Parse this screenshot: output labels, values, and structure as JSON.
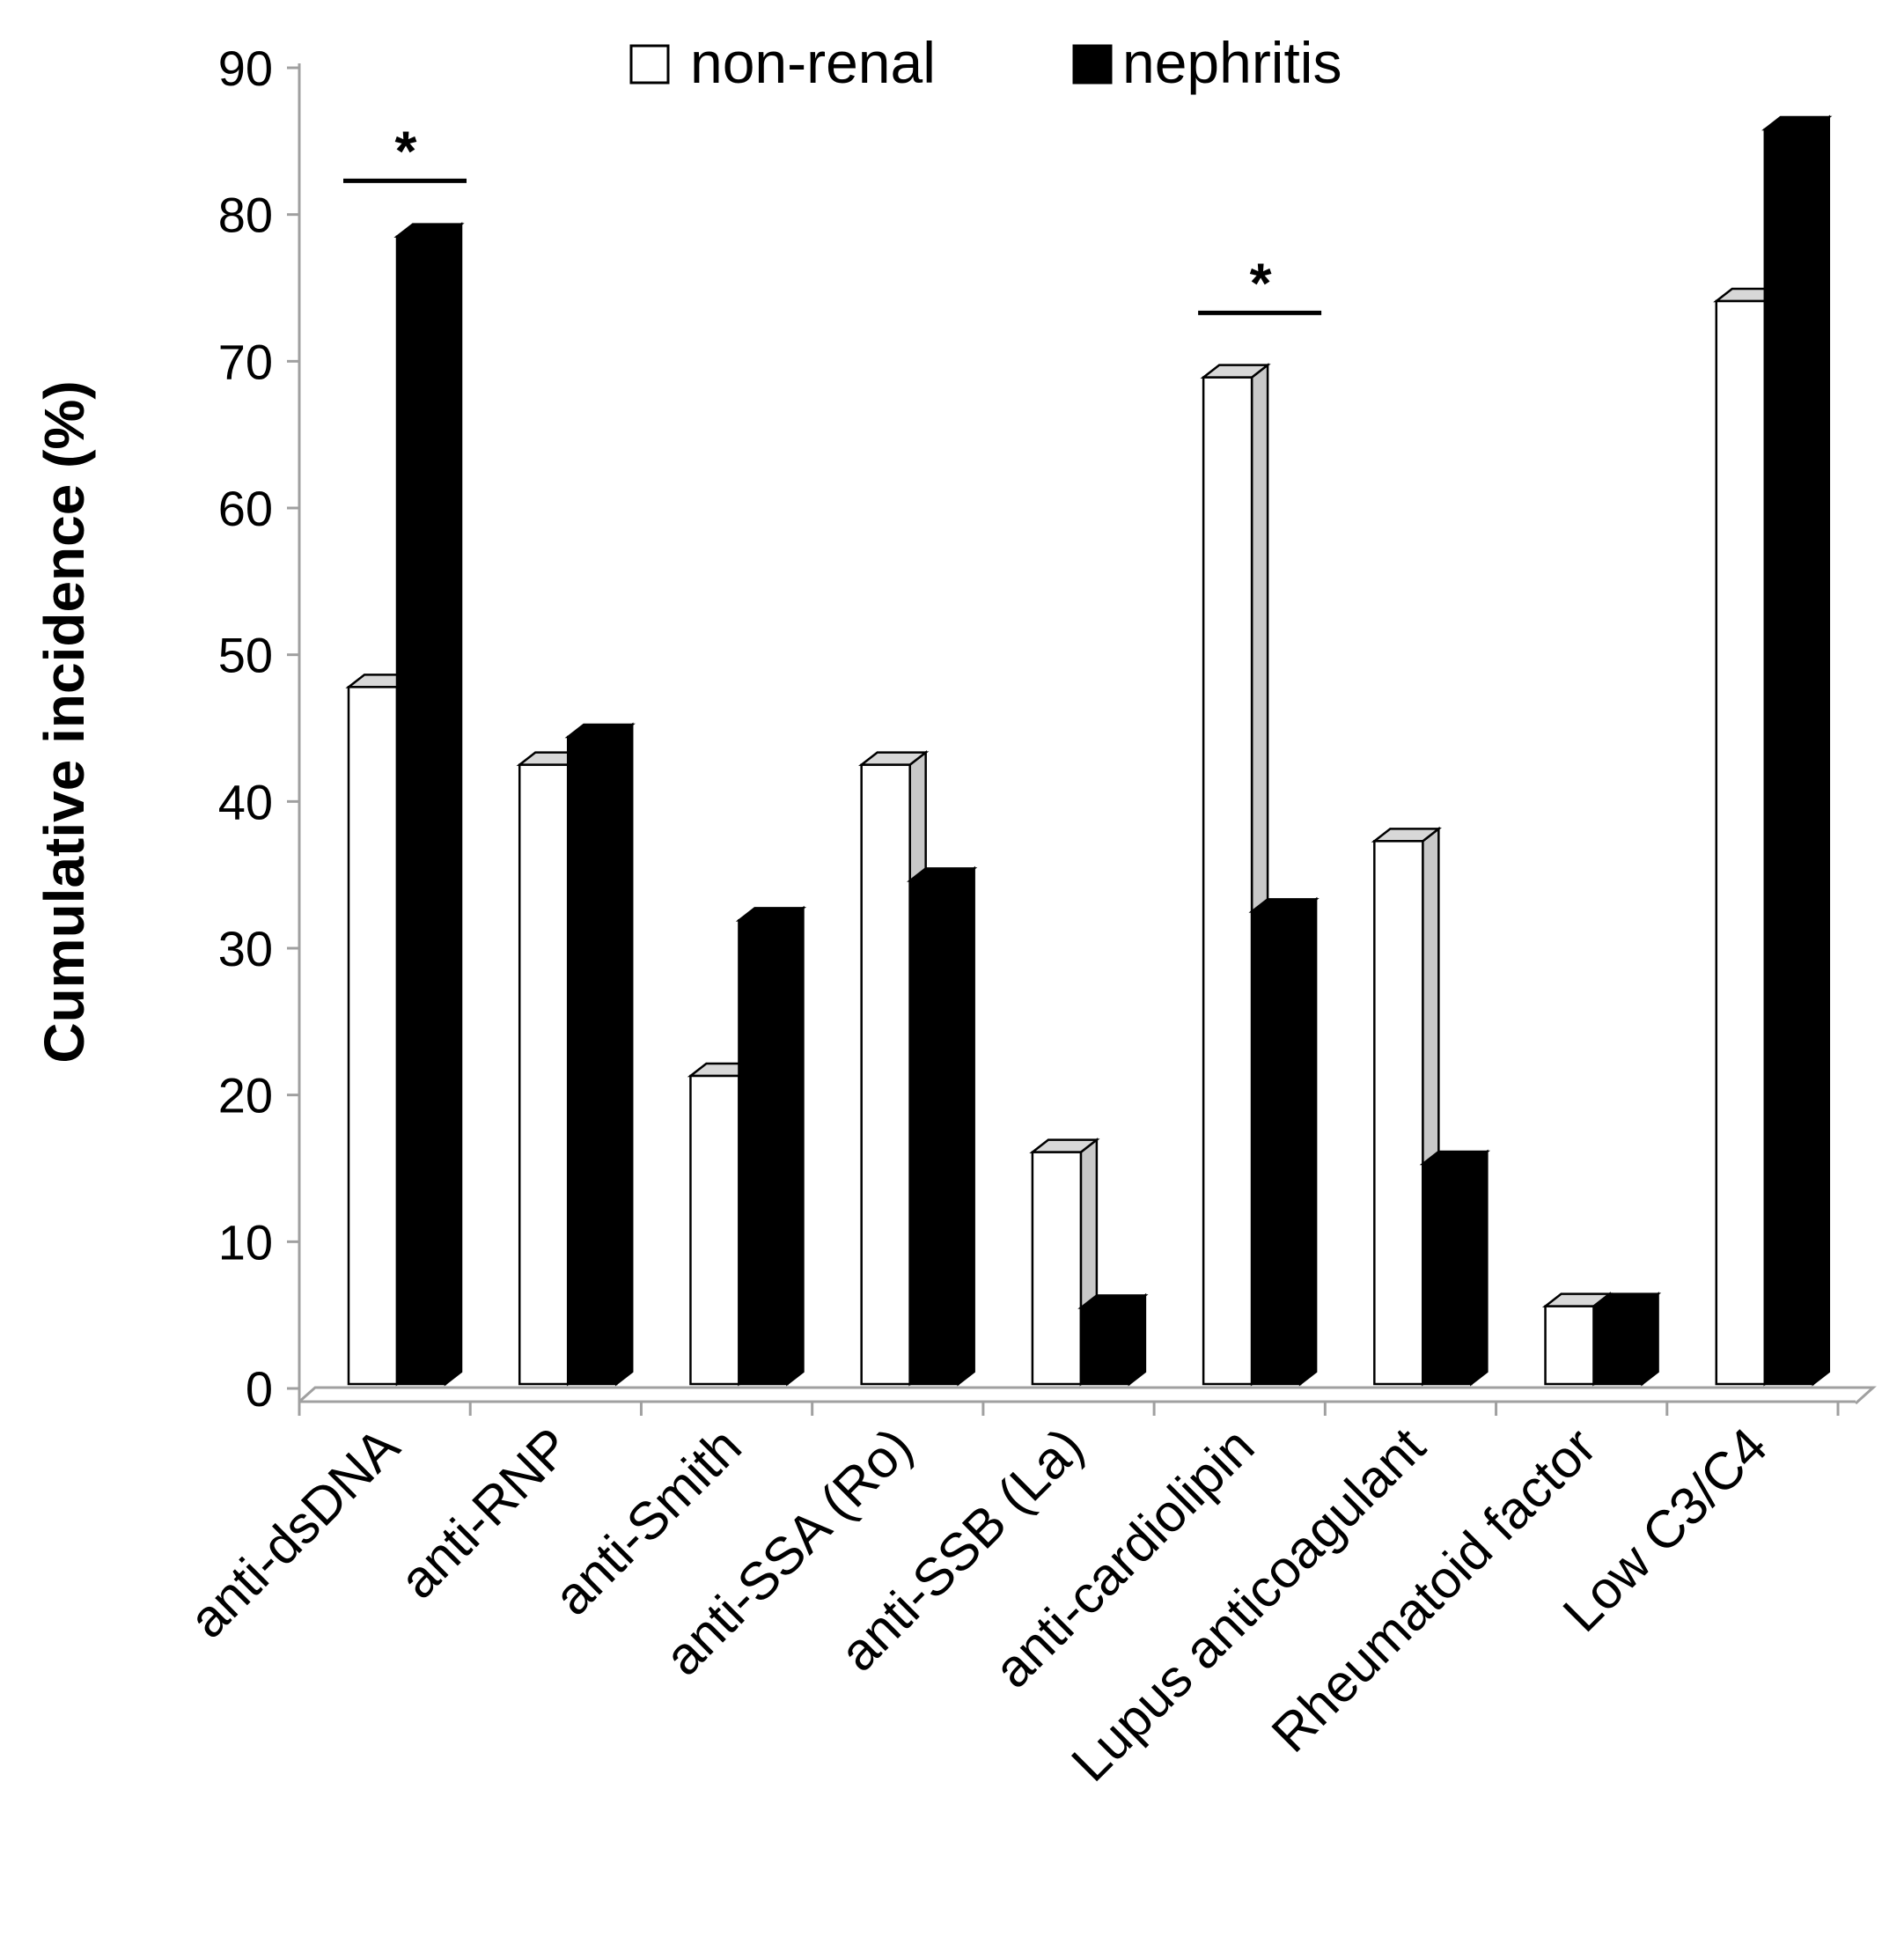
{
  "chart_data": {
    "type": "bar",
    "title": "",
    "xlabel": "",
    "ylabel": "Cumulative incidence (%)",
    "ylim": [
      0,
      90
    ],
    "yticks": [
      0,
      10,
      20,
      30,
      40,
      50,
      60,
      70,
      80,
      90
    ],
    "grid": false,
    "legend_position": "top-center",
    "categories": [
      "anti-dsDNA",
      "anti-RNP",
      "anti-Smith",
      "anti-SSA (Ro)",
      "anti-SSB (La)",
      "anti-cardiolipin",
      "Lupus anticoagulant",
      "Rheumatoid factor",
      "Low C3/C4"
    ],
    "series": [
      {
        "name": "non-renal",
        "values": [
          47.5,
          42.2,
          21.0,
          42.2,
          15.8,
          68.6,
          37.0,
          5.3,
          73.8
        ]
      },
      {
        "name": "nephritis",
        "values": [
          78.2,
          44.1,
          31.6,
          34.3,
          5.2,
          32.2,
          15.0,
          5.3,
          85.5
        ]
      }
    ],
    "annotations": [
      {
        "text": "*",
        "category": "anti-dsDNA",
        "bracket_value": 82
      },
      {
        "text": "*",
        "category": "anti-cardiolipin",
        "bracket_value": 73
      }
    ]
  },
  "colors": {
    "non_renal_face": "#ffffff",
    "non_renal_side": "#c8c8c8",
    "nephritis_face": "#000000",
    "axis": "#a0a0a0",
    "outline": "#000000"
  }
}
